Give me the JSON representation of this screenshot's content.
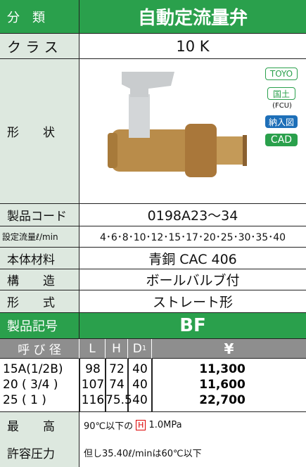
{
  "header": {
    "label": "分　類",
    "title": "自動定流量弁"
  },
  "class": {
    "label": "ク ラ ス",
    "value": "10 K"
  },
  "shape": {
    "label": "形　　状",
    "badges": [
      "TOYO",
      "国土",
      "(FCU)",
      "納入図",
      "CAD"
    ]
  },
  "specs": [
    {
      "label": "製品コード",
      "value": "0198A23～34"
    },
    {
      "label": "設定流量ℓ/min",
      "value": "4･6･8･10･12･15･17･20･25･30･35･40"
    },
    {
      "label": "本体材料",
      "value": "青銅 CAC 406"
    },
    {
      "label": "構　　造",
      "value": "ボールバルブ付"
    },
    {
      "label": "形　　式",
      "value": "ストレート形"
    }
  ],
  "symbol": {
    "label": "製品記号",
    "value": "BF"
  },
  "table": {
    "headers": [
      "呼 び 径",
      "L",
      "H",
      {
        "main": "D",
        "sub": "1"
      },
      "¥"
    ],
    "rows": [
      [
        "15A(1/2B)",
        "98",
        "72",
        "40",
        "11,300"
      ],
      [
        "20 ( 3/4 )",
        "107",
        "74",
        "40",
        "11,600"
      ],
      [
        "25 ( 1 )",
        "116",
        "75.5",
        "40",
        "22,700"
      ]
    ]
  },
  "pressure": {
    "label1": "最　　高",
    "label2": "許容圧力",
    "line1": [
      "90℃以下の",
      "H",
      "1.0MPa"
    ],
    "line2": "但し35.40ℓ/minは60℃以下"
  }
}
